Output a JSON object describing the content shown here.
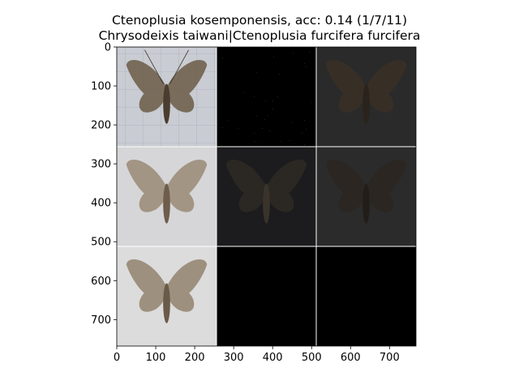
{
  "figure": {
    "title_line1": "Ctenoplusia kosemponensis, acc: 0.14 (1/7/11)",
    "title_line2": "Chrysodeixis taiwani|Ctenoplusia furcifera furcifera"
  },
  "chart_data": {
    "type": "image-grid",
    "title": "Ctenoplusia kosemponensis, acc: 0.14 (1/7/11)\nChrysodeixis taiwani|Ctenoplusia furcifera furcifera",
    "xlim": [
      0,
      768
    ],
    "ylim": [
      768,
      0
    ],
    "x_ticks": [
      0,
      100,
      200,
      300,
      400,
      500,
      600,
      700
    ],
    "y_ticks": [
      0,
      100,
      200,
      300,
      400,
      500,
      600,
      700
    ],
    "grid": {
      "rows": 3,
      "cols": 3,
      "cell_size": 256
    },
    "tiles": [
      {
        "row": 0,
        "col": 0,
        "kind": "moth-photo",
        "bg": "#c9ccd2",
        "moth": "#4a3d30",
        "wing": "#6b5a47"
      },
      {
        "row": 0,
        "col": 1,
        "kind": "attribution-map",
        "bg": "#000000",
        "moth": "#111111",
        "wing": "#222222"
      },
      {
        "row": 0,
        "col": 2,
        "kind": "masked-photo",
        "bg": "#2a2a2a",
        "moth": "#2a231c",
        "wing": "#3a3026"
      },
      {
        "row": 1,
        "col": 0,
        "kind": "moth-photo-faded",
        "bg": "#d6d6d8",
        "moth": "#6e5d4b",
        "wing": "#9a8a76"
      },
      {
        "row": 1,
        "col": 1,
        "kind": "masked-photo",
        "bg": "#1c1c1e",
        "moth": "#3a332c",
        "wing": "#2e2a26"
      },
      {
        "row": 1,
        "col": 2,
        "kind": "masked-photo",
        "bg": "#2b2b2b",
        "moth": "#221d18",
        "wing": "#2c2620"
      },
      {
        "row": 2,
        "col": 0,
        "kind": "moth-photo-faded",
        "bg": "#dcdcdc",
        "moth": "#6a5a48",
        "wing": "#93826d"
      },
      {
        "row": 2,
        "col": 1,
        "kind": "empty",
        "bg": "#000000"
      },
      {
        "row": 2,
        "col": 2,
        "kind": "empty",
        "bg": "#000000"
      }
    ]
  }
}
